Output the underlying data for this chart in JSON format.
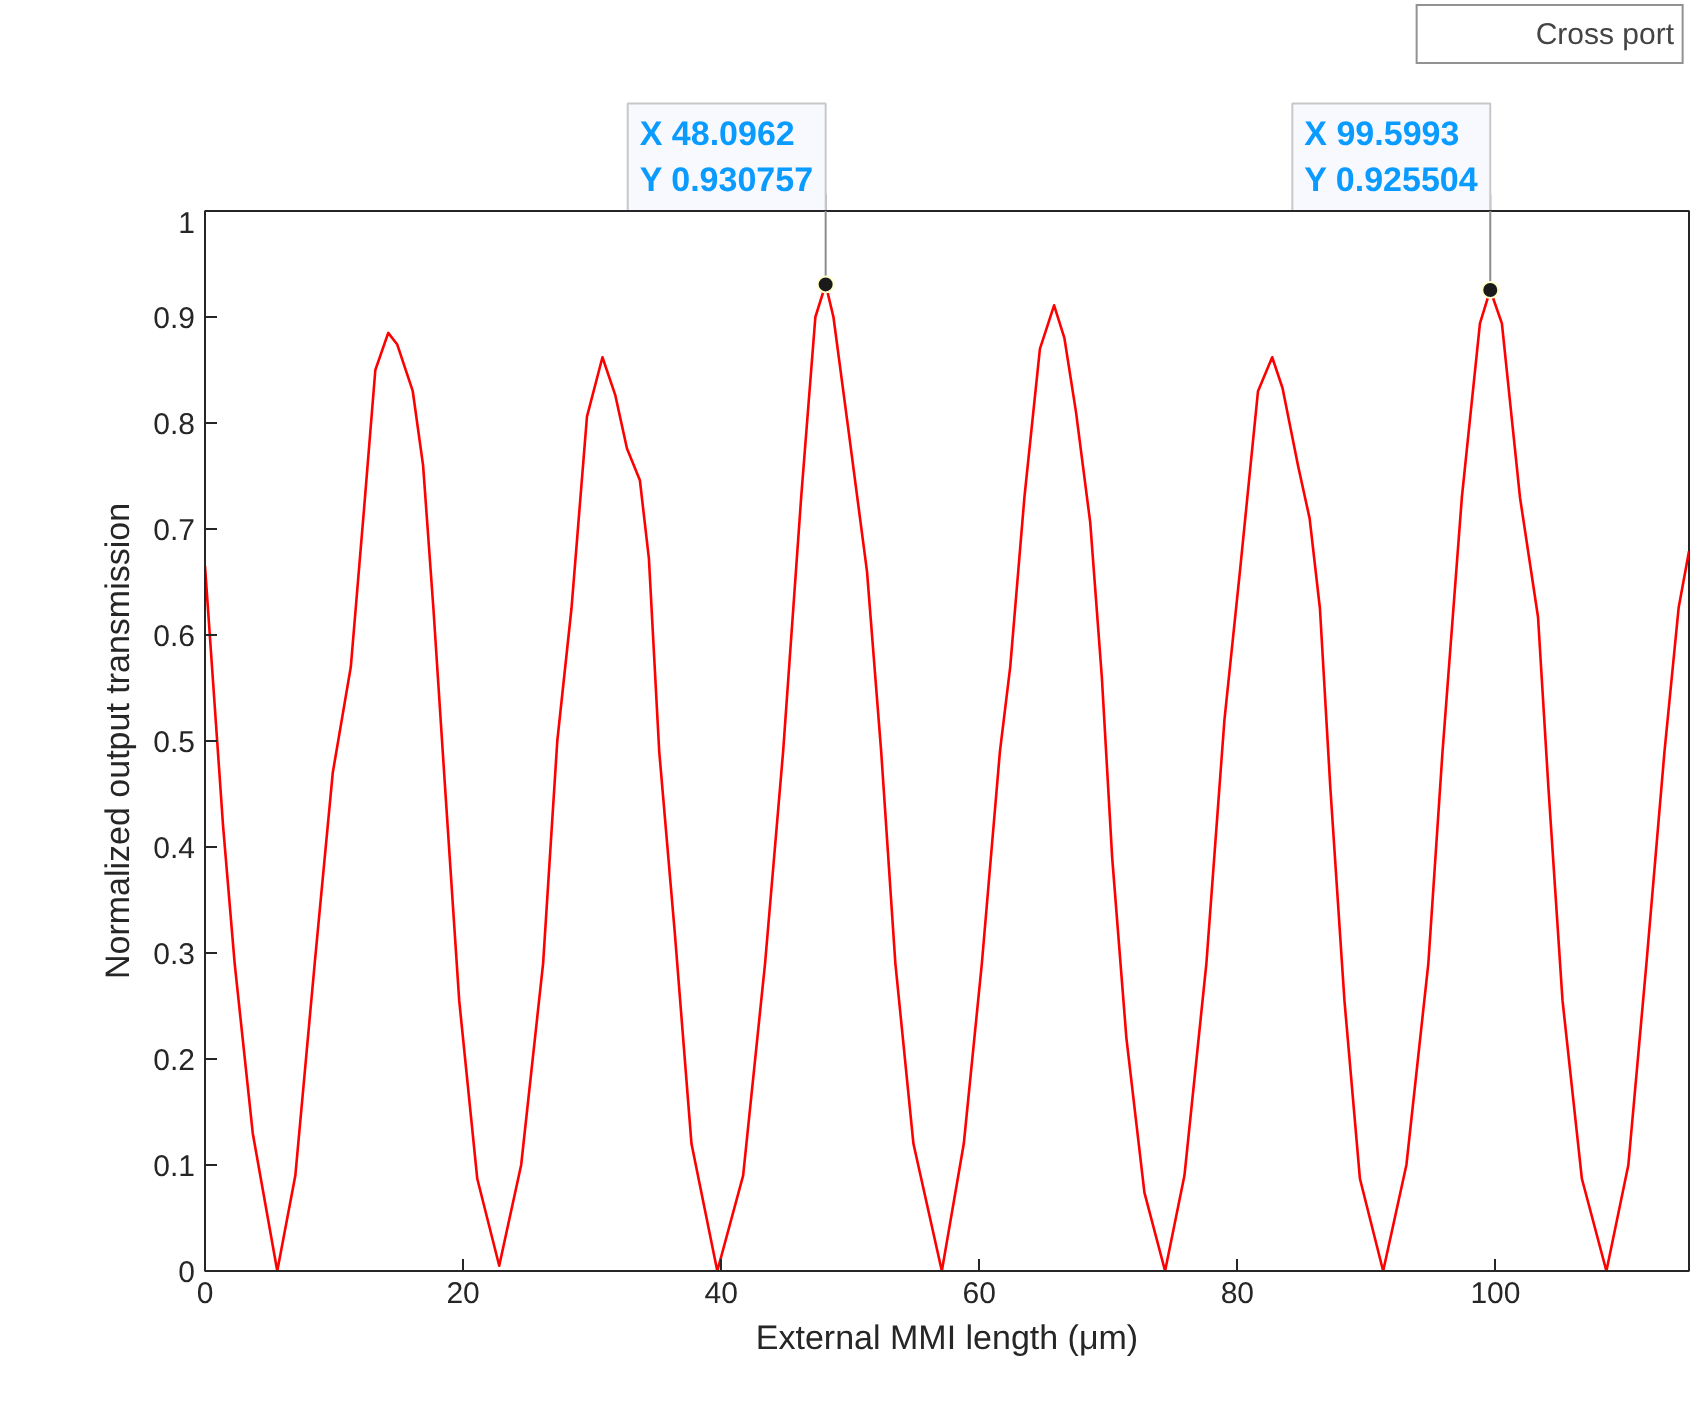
{
  "chart_data": {
    "type": "line",
    "xlabel": "External MMI length (μm)",
    "ylabel": "Normalized output transmission",
    "x": [
      0,
      1.4,
      2.3,
      3.7,
      5.6,
      7.0,
      8.5,
      9.9,
      11.3,
      12.4,
      13.2,
      14.2,
      14.9,
      16.1,
      16.9,
      17.7,
      18.6,
      19.7,
      21.1,
      22.8,
      24.5,
      26.2,
      27.3,
      28.4,
      29.6,
      30.8,
      31.8,
      32.7,
      33.7,
      34.4,
      35.2,
      36.4,
      37.7,
      39.7,
      41.7,
      43.4,
      44.8,
      46.2,
      47.3,
      48.0962,
      48.7,
      49.9,
      51.3,
      52.4,
      53.5,
      54.9,
      57.1,
      58.8,
      60.2,
      61.6,
      62.4,
      63.5,
      64.7,
      65.8,
      66.6,
      67.5,
      68.6,
      69.5,
      70.3,
      71.4,
      72.8,
      74.4,
      75.9,
      77.6,
      79.0,
      80.2,
      81.6,
      82.7,
      83.5,
      84.7,
      85.6,
      86.4,
      87.2,
      88.3,
      89.5,
      91.3,
      93.1,
      94.8,
      95.9,
      97.4,
      98.8,
      99.5993,
      100.5,
      101.9,
      103.3,
      104.1,
      105.2,
      106.7,
      108.6,
      110.3,
      111.7,
      113.1,
      114.2,
      115.0
    ],
    "series": [
      {
        "name": "Cross port",
        "color": "#ff0000",
        "values": [
          0.665,
          0.42,
          0.29,
          0.13,
          0.0,
          0.09,
          0.29,
          0.47,
          0.57,
          0.73,
          0.85,
          0.885,
          0.874,
          0.83,
          0.76,
          0.625,
          0.457,
          0.255,
          0.087,
          0.005,
          0.1,
          0.29,
          0.5,
          0.625,
          0.806,
          0.862,
          0.826,
          0.776,
          0.746,
          0.672,
          0.49,
          0.32,
          0.12,
          0.0,
          0.09,
          0.29,
          0.49,
          0.73,
          0.9,
          0.930757,
          0.9,
          0.79,
          0.66,
          0.49,
          0.29,
          0.12,
          0.0,
          0.12,
          0.29,
          0.49,
          0.57,
          0.73,
          0.87,
          0.911,
          0.88,
          0.81,
          0.706,
          0.56,
          0.39,
          0.22,
          0.074,
          0.0,
          0.09,
          0.29,
          0.52,
          0.66,
          0.83,
          0.862,
          0.833,
          0.76,
          0.71,
          0.625,
          0.457,
          0.255,
          0.087,
          0.0,
          0.1,
          0.29,
          0.49,
          0.73,
          0.894,
          0.925504,
          0.894,
          0.73,
          0.617,
          0.457,
          0.255,
          0.087,
          0.0,
          0.1,
          0.29,
          0.49,
          0.626,
          0.679
        ]
      }
    ],
    "xlim": [
      0,
      115
    ],
    "ylim": [
      0,
      1
    ],
    "xticks": [
      0,
      20,
      40,
      60,
      80,
      100
    ],
    "yticks": [
      0,
      0.1,
      0.2,
      0.3,
      0.4,
      0.5,
      0.6,
      0.7,
      0.8,
      0.9,
      1
    ],
    "annotations": [
      {
        "text": "X 48.0962\nY 0.930757",
        "x": 48.0962,
        "y": 0.930757
      },
      {
        "text": "X 99.5993\nY 0.925504",
        "x": 99.5993,
        "y": 0.925504
      }
    ],
    "grid": false,
    "legend": "top right",
    "marker": "none",
    "line_style": "solid"
  }
}
